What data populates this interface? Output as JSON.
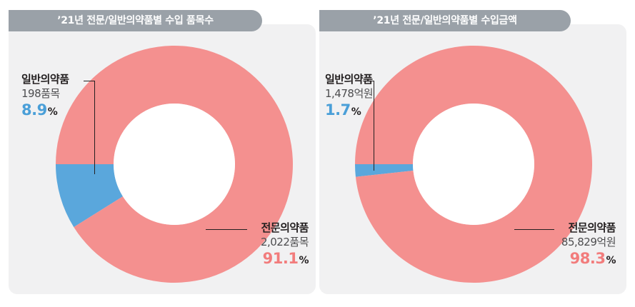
{
  "colors": {
    "otc": "#5aa7dc",
    "rx": "#f4908f",
    "otc_text": "#4a9fd8",
    "rx_text": "#f27c7c"
  },
  "chart_data": [
    {
      "type": "pie",
      "title": "’21년 전문/일반의약품별 수입 품목수",
      "slices": [
        {
          "label": "일반의약품",
          "count": "198품목",
          "value": 8.9,
          "pct_label": "8.9"
        },
        {
          "label": "전문의약품",
          "count": "2,022품목",
          "value": 91.1,
          "pct_label": "91.1"
        }
      ],
      "unit": "%"
    },
    {
      "type": "pie",
      "title": "’21년 전문/일반의약품별 수입금액",
      "slices": [
        {
          "label": "일반의약품",
          "count": "1,478억원",
          "value": 1.7,
          "pct_label": "1.7"
        },
        {
          "label": "전문의약품",
          "count": "85,829억원",
          "value": 98.3,
          "pct_label": "98.3"
        }
      ],
      "unit": "%"
    }
  ]
}
